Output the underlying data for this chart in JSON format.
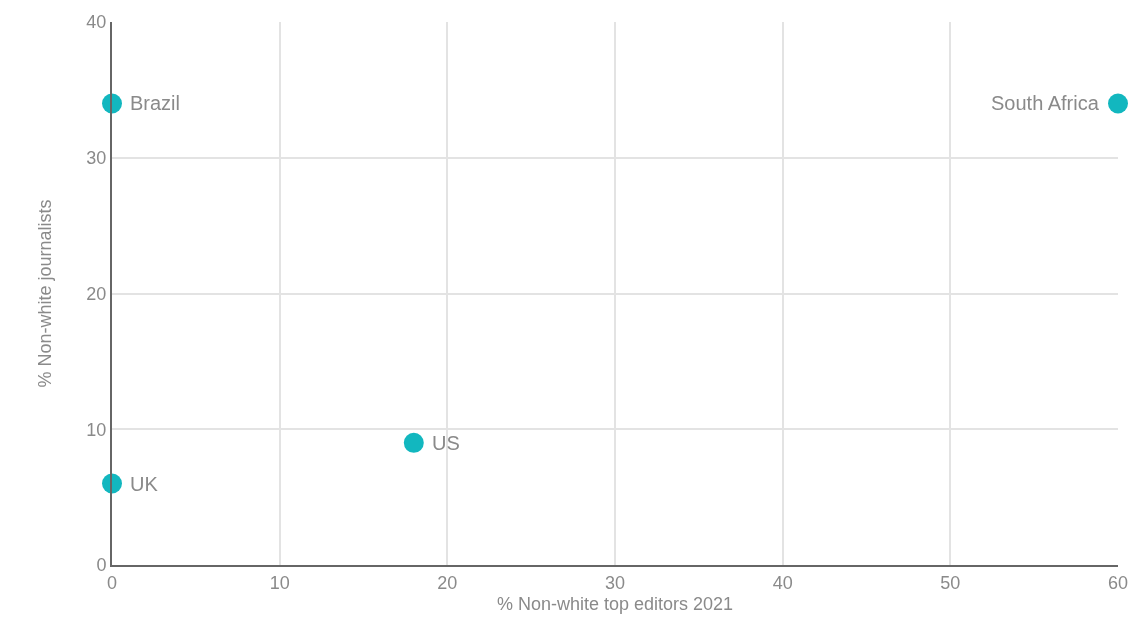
{
  "chart_data": {
    "type": "scatter",
    "xlabel": "% Non-white top editors 2021",
    "ylabel": "% Non-white journalists",
    "x": [
      0,
      60,
      18,
      0
    ],
    "values": [
      34,
      34,
      9,
      6
    ],
    "color": "#12b7bf",
    "marker": "circle",
    "annotations": [
      {
        "text": "Brazil",
        "x": 0,
        "y": 34
      },
      {
        "text": "South Africa",
        "x": 60,
        "y": 34
      },
      {
        "text": "US",
        "x": 18,
        "y": 9
      },
      {
        "text": "UK",
        "x": 0,
        "y": 6
      }
    ],
    "xlim": [
      0,
      60
    ],
    "ylim": [
      0,
      40
    ],
    "xticks": [
      0,
      10,
      20,
      30,
      40,
      50,
      60
    ],
    "yticks": [
      0,
      10,
      20,
      30,
      40
    ],
    "grid": true
  }
}
